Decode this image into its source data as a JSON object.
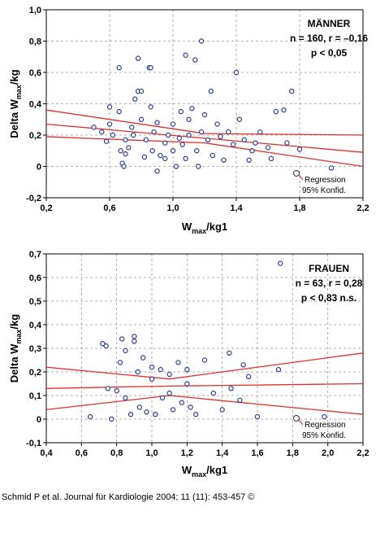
{
  "chart_data": [
    {
      "type": "scatter",
      "x_label": {
        "text": "W",
        "sub": "max",
        "suffix": "/kg1"
      },
      "y_label": {
        "text": "Delta W",
        "sub": "max",
        "suffix": "/kg"
      },
      "annotations": [
        "MÄNNER",
        "n = 160, r = –0,16",
        "p < 0,05"
      ],
      "legend": [
        "Regression",
        "95% Konfid."
      ],
      "xlim": [
        0.2,
        2.2
      ],
      "xticks": [
        {
          "value": 0.2,
          "label": "0,2"
        },
        {
          "value": 0.6,
          "label": "0,6"
        },
        {
          "value": 1.0,
          "label": "1,0"
        },
        {
          "value": 1.4,
          "label": "1,4"
        },
        {
          "value": 1.8,
          "label": "1,8"
        },
        {
          "value": 2.2,
          "label": "2,2"
        }
      ],
      "ylim": [
        -0.2,
        1.0
      ],
      "yticks": [
        {
          "value": -0.2,
          "label": "-0,2"
        },
        0,
        {
          "value": 0.2,
          "label": "0,2"
        },
        {
          "value": 0.4,
          "label": "0,4"
        },
        {
          "value": 0.6,
          "label": "0,6"
        },
        {
          "value": 0.8,
          "label": "0,8"
        },
        {
          "value": 1.0,
          "label": "1,0"
        }
      ],
      "grid": true,
      "point_color": "#2b3f9e",
      "line_color": "#e0302a",
      "x": [
        0.5,
        0.55,
        0.58,
        0.6,
        0.6,
        0.62,
        0.66,
        0.66,
        0.67,
        0.68,
        0.69,
        0.7,
        0.7,
        0.72,
        0.74,
        0.75,
        0.76,
        0.78,
        0.78,
        0.8,
        0.8,
        0.82,
        0.83,
        0.85,
        0.86,
        0.86,
        0.87,
        0.88,
        0.9,
        0.9,
        0.92,
        0.95,
        0.95,
        0.97,
        1.0,
        1.0,
        1.02,
        1.04,
        1.05,
        1.06,
        1.08,
        1.08,
        1.1,
        1.1,
        1.12,
        1.14,
        1.15,
        1.16,
        1.18,
        1.18,
        1.2,
        1.22,
        1.24,
        1.25,
        1.28,
        1.3,
        1.32,
        1.35,
        1.38,
        1.4,
        1.42,
        1.45,
        1.48,
        1.5,
        1.52,
        1.55,
        1.6,
        1.62,
        1.65,
        1.7,
        1.72,
        1.75,
        1.8,
        2.0
      ],
      "values": [
        0.25,
        0.22,
        0.16,
        0.38,
        0.27,
        0.2,
        0.63,
        0.35,
        0.1,
        0.02,
        0.0,
        0.17,
        0.08,
        0.12,
        0.25,
        0.2,
        0.43,
        0.69,
        0.48,
        0.48,
        0.3,
        0.06,
        0.17,
        0.63,
        0.63,
        0.38,
        0.1,
        0.22,
        -0.03,
        0.28,
        0.07,
        0.15,
        0.05,
        0.2,
        0.27,
        0.1,
        0.0,
        0.18,
        0.35,
        0.14,
        0.71,
        0.05,
        0.3,
        0.2,
        0.37,
        0.68,
        0.1,
        0.0,
        0.8,
        0.22,
        0.33,
        0.17,
        0.48,
        0.07,
        0.27,
        0.19,
        0.04,
        0.22,
        0.14,
        0.6,
        0.3,
        0.17,
        0.04,
        0.1,
        0.15,
        0.22,
        0.12,
        0.05,
        0.35,
        0.36,
        0.15,
        0.48,
        0.11,
        -0.01
      ],
      "fit": {
        "x": [
          0.2,
          1.2,
          2.2
        ],
        "y": [
          0.27,
          0.18,
          0.09
        ]
      },
      "ci_upper": {
        "x": [
          0.2,
          1.2,
          2.2
        ],
        "y": [
          0.36,
          0.21,
          0.2
        ]
      },
      "ci_lower": {
        "x": [
          0.2,
          1.2,
          2.2
        ],
        "y": [
          0.19,
          0.15,
          0.0
        ]
      }
    },
    {
      "type": "scatter",
      "x_label": {
        "text": "W",
        "sub": "max",
        "suffix": "/kg1"
      },
      "y_label": {
        "text": "Delta W",
        "sub": "max",
        "suffix": "/kg"
      },
      "annotations": [
        "FRAUEN",
        "n = 63, r = 0,28",
        "p < 0,83  n.s."
      ],
      "legend": [
        "Regression",
        "95% Konfid."
      ],
      "xlim": [
        0.4,
        2.2
      ],
      "xticks": [
        {
          "value": 0.4,
          "label": "0,4"
        },
        {
          "value": 0.6,
          "label": "0,6"
        },
        {
          "value": 0.8,
          "label": "0,8"
        },
        {
          "value": 1.0,
          "label": "1,0"
        },
        {
          "value": 1.2,
          "label": "1,2"
        },
        {
          "value": 1.4,
          "label": "1,4"
        },
        {
          "value": 1.6,
          "label": "1,6"
        },
        {
          "value": 1.8,
          "label": "1,8"
        },
        {
          "value": 2.0,
          "label": "2,0"
        },
        {
          "value": 2.2,
          "label": "2,2"
        }
      ],
      "ylim": [
        -0.1,
        0.7
      ],
      "yticks": [
        {
          "value": -0.1,
          "label": "-0,1"
        },
        0,
        {
          "value": 0.1,
          "label": "0,1"
        },
        {
          "value": 0.2,
          "label": "0,2"
        },
        {
          "value": 0.3,
          "label": "0,3"
        },
        {
          "value": 0.4,
          "label": "0,4"
        },
        {
          "value": 0.5,
          "label": "0,5"
        },
        {
          "value": 0.6,
          "label": "0,6"
        },
        {
          "value": 0.7,
          "label": "0,7"
        }
      ],
      "grid": true,
      "point_color": "#2b3f9e",
      "line_color": "#e0302a",
      "x": [
        0.65,
        0.72,
        0.74,
        0.75,
        0.77,
        0.8,
        0.82,
        0.83,
        0.85,
        0.85,
        0.88,
        0.9,
        0.9,
        0.92,
        0.93,
        0.95,
        0.97,
        1.0,
        1.0,
        1.02,
        1.05,
        1.06,
        1.1,
        1.1,
        1.12,
        1.15,
        1.17,
        1.2,
        1.2,
        1.22,
        1.25,
        1.3,
        1.35,
        1.4,
        1.44,
        1.45,
        1.5,
        1.52,
        1.55,
        1.6,
        1.72,
        1.73,
        1.98
      ],
      "values": [
        0.01,
        0.32,
        0.31,
        0.13,
        0.0,
        0.12,
        0.24,
        0.34,
        0.29,
        0.09,
        0.02,
        0.35,
        0.33,
        0.2,
        0.05,
        0.26,
        0.03,
        0.22,
        0.17,
        0.02,
        0.21,
        0.09,
        0.19,
        0.11,
        0.04,
        0.24,
        0.07,
        0.21,
        0.15,
        0.05,
        0.02,
        0.25,
        0.11,
        0.04,
        0.28,
        0.13,
        0.08,
        0.23,
        0.18,
        0.01,
        0.21,
        0.66,
        0.01
      ],
      "fit": {
        "x": [
          0.4,
          1.1,
          2.2
        ],
        "y": [
          0.13,
          0.14,
          0.15
        ]
      },
      "ci_upper": {
        "x": [
          0.4,
          1.1,
          2.2
        ],
        "y": [
          0.22,
          0.17,
          0.28
        ]
      },
      "ci_lower": {
        "x": [
          0.4,
          1.1,
          2.2
        ],
        "y": [
          0.04,
          0.1,
          0.02
        ]
      }
    }
  ],
  "footer": "Schmid P et al. Journal für Kardiologie 2004; 11 (11): 453-457 ©"
}
